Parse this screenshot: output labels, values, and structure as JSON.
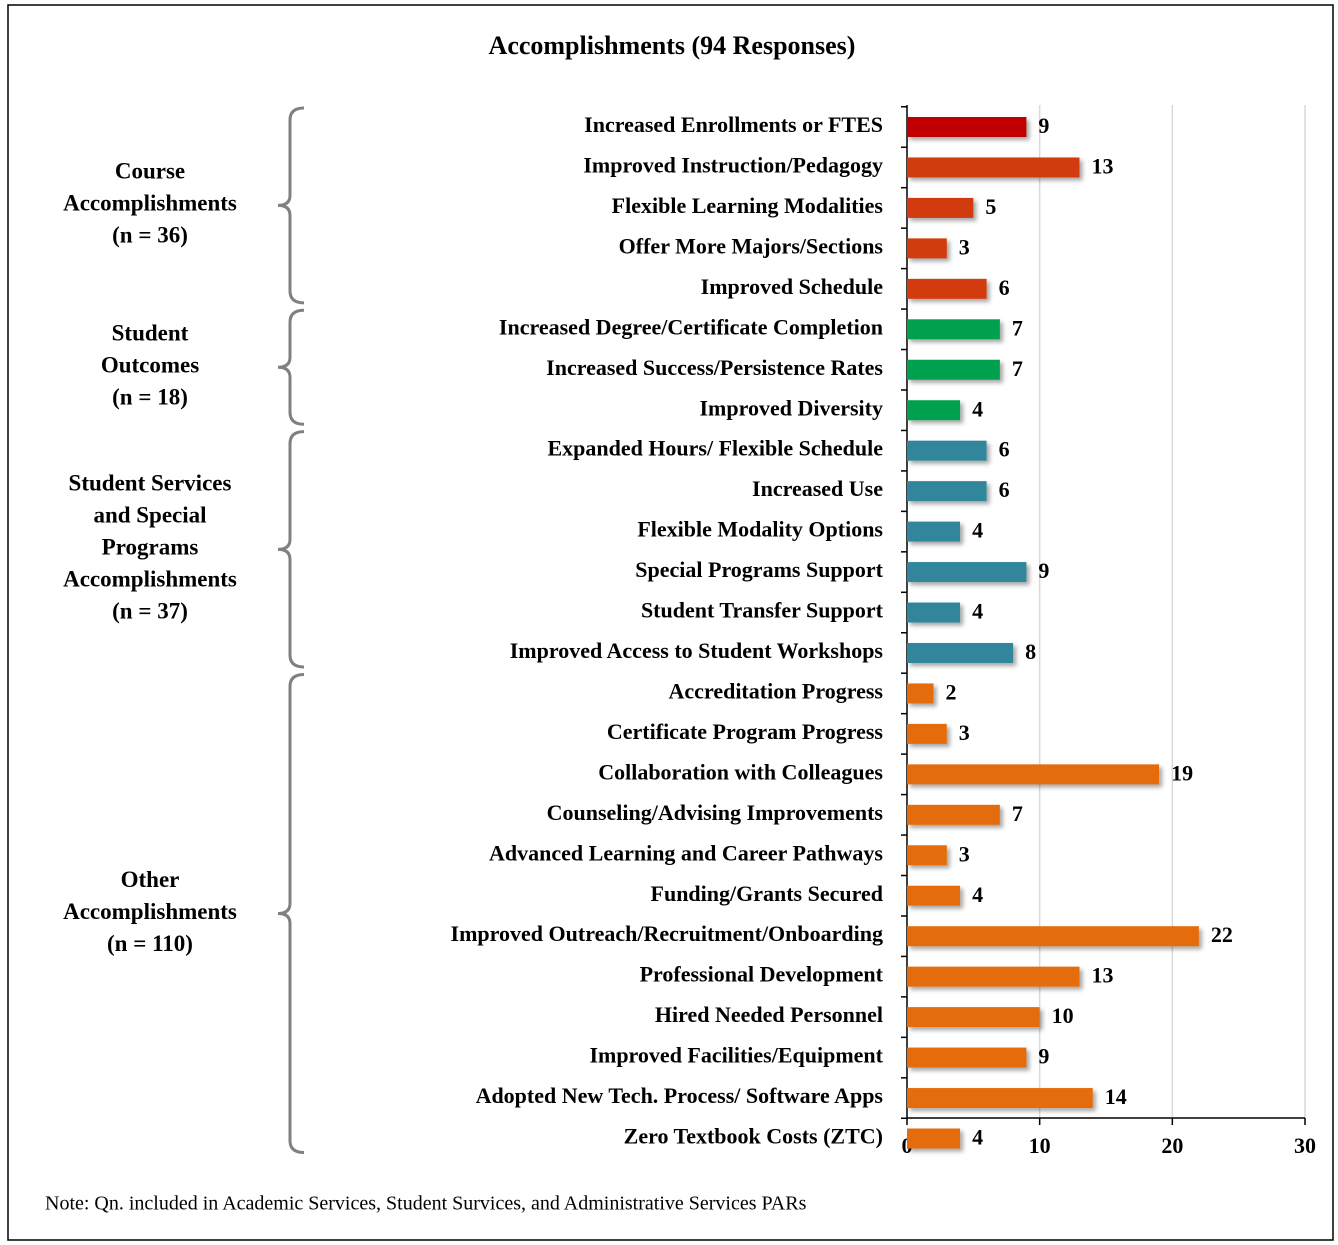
{
  "chart_data": {
    "type": "grouped-hbar",
    "title": "Accomplishments (94 Responses)",
    "note": "Note: Qn. included in Academic Services, Student Survices, and Administrative Services PARs",
    "xlim": [
      0,
      30
    ],
    "xticks": [
      0,
      10,
      20,
      30
    ],
    "grid": true,
    "groups": [
      {
        "label_lines": [
          "Course",
          "Accomplishments",
          "(n = 36)"
        ],
        "categories": [
          "Increased Enrollments or FTES",
          "Improved Instruction/Pedagogy",
          "Flexible Learning Modalities",
          "Offer More Majors/Sections",
          "Improved Schedule"
        ],
        "values": [
          9,
          13,
          5,
          3,
          6
        ],
        "colors": [
          "#c00000",
          "#d13b0b",
          "#d13b0b",
          "#d13b0b",
          "#d13b0b"
        ]
      },
      {
        "label_lines": [
          "Student",
          "Outcomes",
          "(n = 18)"
        ],
        "categories": [
          "Increased Degree/Certificate Completion",
          "Increased Success/Persistence Rates",
          "Improved Diversity"
        ],
        "values": [
          7,
          7,
          4
        ],
        "colors": [
          "#00a04f",
          "#00a04f",
          "#00a04f"
        ]
      },
      {
        "label_lines": [
          "Student Services",
          "and Special",
          "Programs",
          "Accomplishments",
          "(n = 37)"
        ],
        "categories": [
          "Expanded Hours/ Flexible Schedule",
          "Increased Use",
          "Flexible Modality Options",
          "Special Programs Support",
          "Student Transfer Support",
          "Improved Access to Student Workshops"
        ],
        "values": [
          6,
          6,
          4,
          9,
          4,
          8
        ],
        "colors": [
          "#31869b",
          "#31869b",
          "#31869b",
          "#31869b",
          "#31869b",
          "#31869b"
        ]
      },
      {
        "label_lines": [
          "Other",
          "Accomplishments",
          "(n = 110)"
        ],
        "categories": [
          "Accreditation Progress",
          "Certificate Program Progress",
          "Collaboration with Colleagues",
          "Counseling/Advising Improvements",
          "Advanced Learning and Career Pathways",
          "Funding/Grants Secured",
          "Improved Outreach/Recruitment/Onboarding",
          "Professional Development",
          "Hired Needed Personnel",
          "Improved Facilities/Equipment",
          "Adopted New Tech. Process/ Software Apps",
          "Zero Textbook Costs (ZTC)"
        ],
        "values": [
          2,
          3,
          19,
          7,
          3,
          4,
          22,
          13,
          10,
          9,
          14,
          4
        ],
        "colors": [
          "#e46c0a",
          "#e46c0a",
          "#e46c0a",
          "#e46c0a",
          "#e46c0a",
          "#e46c0a",
          "#e46c0a",
          "#e46c0a",
          "#e46c0a",
          "#e46c0a",
          "#e46c0a",
          "#e46c0a"
        ]
      }
    ]
  }
}
